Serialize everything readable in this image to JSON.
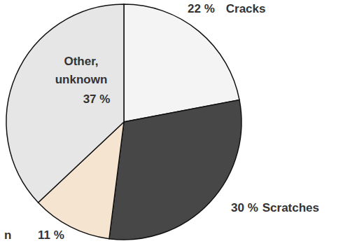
{
  "chart_data": {
    "type": "pie",
    "categories": [
      "Cracks",
      "Scratches",
      "n",
      "Other, unknown"
    ],
    "values": [
      22,
      30,
      11,
      37
    ],
    "value_labels": [
      "22 %",
      "30 %",
      "11 %",
      "37 %"
    ],
    "colors": [
      "#f4f4f4",
      "#474747",
      "#f4e4d0",
      "#e6e6e6"
    ],
    "data_labels": true
  }
}
